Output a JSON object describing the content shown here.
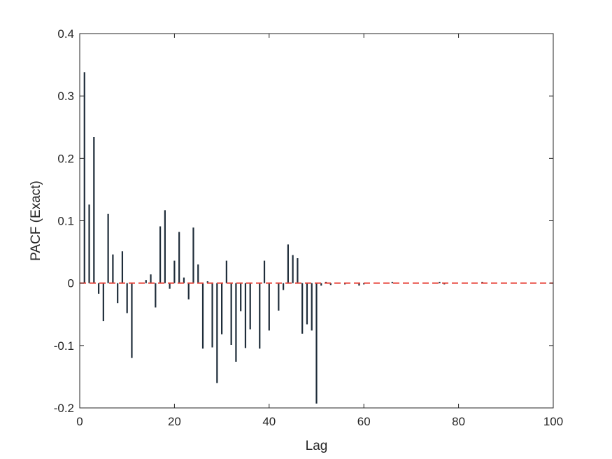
{
  "chart_data": {
    "type": "stem",
    "title": "",
    "xlabel": "Lag",
    "ylabel": "PACF (Exact)",
    "xlim": [
      0,
      100
    ],
    "ylim": [
      -0.2,
      0.4
    ],
    "xticks": [
      0,
      20,
      40,
      60,
      80,
      100
    ],
    "yticks": [
      -0.2,
      -0.1,
      0,
      0.1,
      0.2,
      0.3,
      0.4
    ],
    "ytick_labels": [
      "-0.2",
      "-0.1",
      "0",
      "0.1",
      "0.2",
      "0.3",
      "0.4"
    ],
    "grid": false,
    "colors": {
      "stem": "#1f2d3a",
      "reference_line": "#e8443a",
      "axes": "#262626"
    },
    "reference_line": {
      "y": 0,
      "style": "dashed"
    },
    "series": [
      {
        "x": [
          1,
          2,
          3,
          4,
          5,
          6,
          7,
          8,
          9,
          10,
          11,
          12,
          13,
          14,
          15,
          16,
          17,
          18,
          19,
          20,
          21,
          22,
          23,
          24,
          25,
          26,
          27,
          28,
          29,
          30,
          31,
          32,
          33,
          34,
          35,
          36,
          37,
          38,
          39,
          40,
          41,
          42,
          43,
          44,
          45,
          46,
          47,
          48,
          49,
          50,
          51,
          52,
          53,
          54,
          55,
          56,
          57,
          58,
          59,
          60,
          61,
          62,
          63,
          64,
          65,
          66,
          67,
          68,
          69,
          70,
          71,
          72,
          73,
          74,
          75,
          76,
          77,
          78,
          79,
          80,
          81,
          82,
          83,
          84,
          85,
          86,
          87,
          88,
          89,
          90,
          91,
          92,
          93,
          94,
          95,
          96,
          97,
          98,
          99,
          100
        ],
        "values": [
          0.338,
          0.126,
          0.234,
          -0.017,
          -0.061,
          0.111,
          0.046,
          -0.032,
          0.051,
          -0.048,
          -0.12,
          0,
          0,
          0.005,
          0.014,
          -0.039,
          0.091,
          0.117,
          -0.009,
          0.036,
          0.082,
          0.009,
          -0.026,
          0.089,
          0.03,
          -0.105,
          0.003,
          -0.103,
          -0.16,
          -0.082,
          0.036,
          -0.099,
          -0.126,
          -0.045,
          -0.104,
          -0.074,
          0,
          -0.105,
          0.036,
          -0.076,
          0,
          -0.044,
          -0.011,
          0.062,
          0.045,
          0.04,
          -0.081,
          -0.066,
          -0.076,
          -0.193,
          -0.004,
          0.002,
          -0.003,
          0,
          0,
          -0.002,
          0,
          0,
          -0.004,
          -0.002,
          0,
          0,
          0,
          0,
          0,
          0.002,
          0,
          0,
          0,
          0,
          0,
          0,
          0,
          0,
          0,
          0.002,
          -0.002,
          0,
          0,
          0,
          0,
          0,
          0,
          0,
          0.002,
          0,
          0,
          0,
          0,
          0,
          0,
          0,
          0,
          0,
          0,
          0,
          0,
          0,
          0,
          0
        ]
      }
    ]
  }
}
